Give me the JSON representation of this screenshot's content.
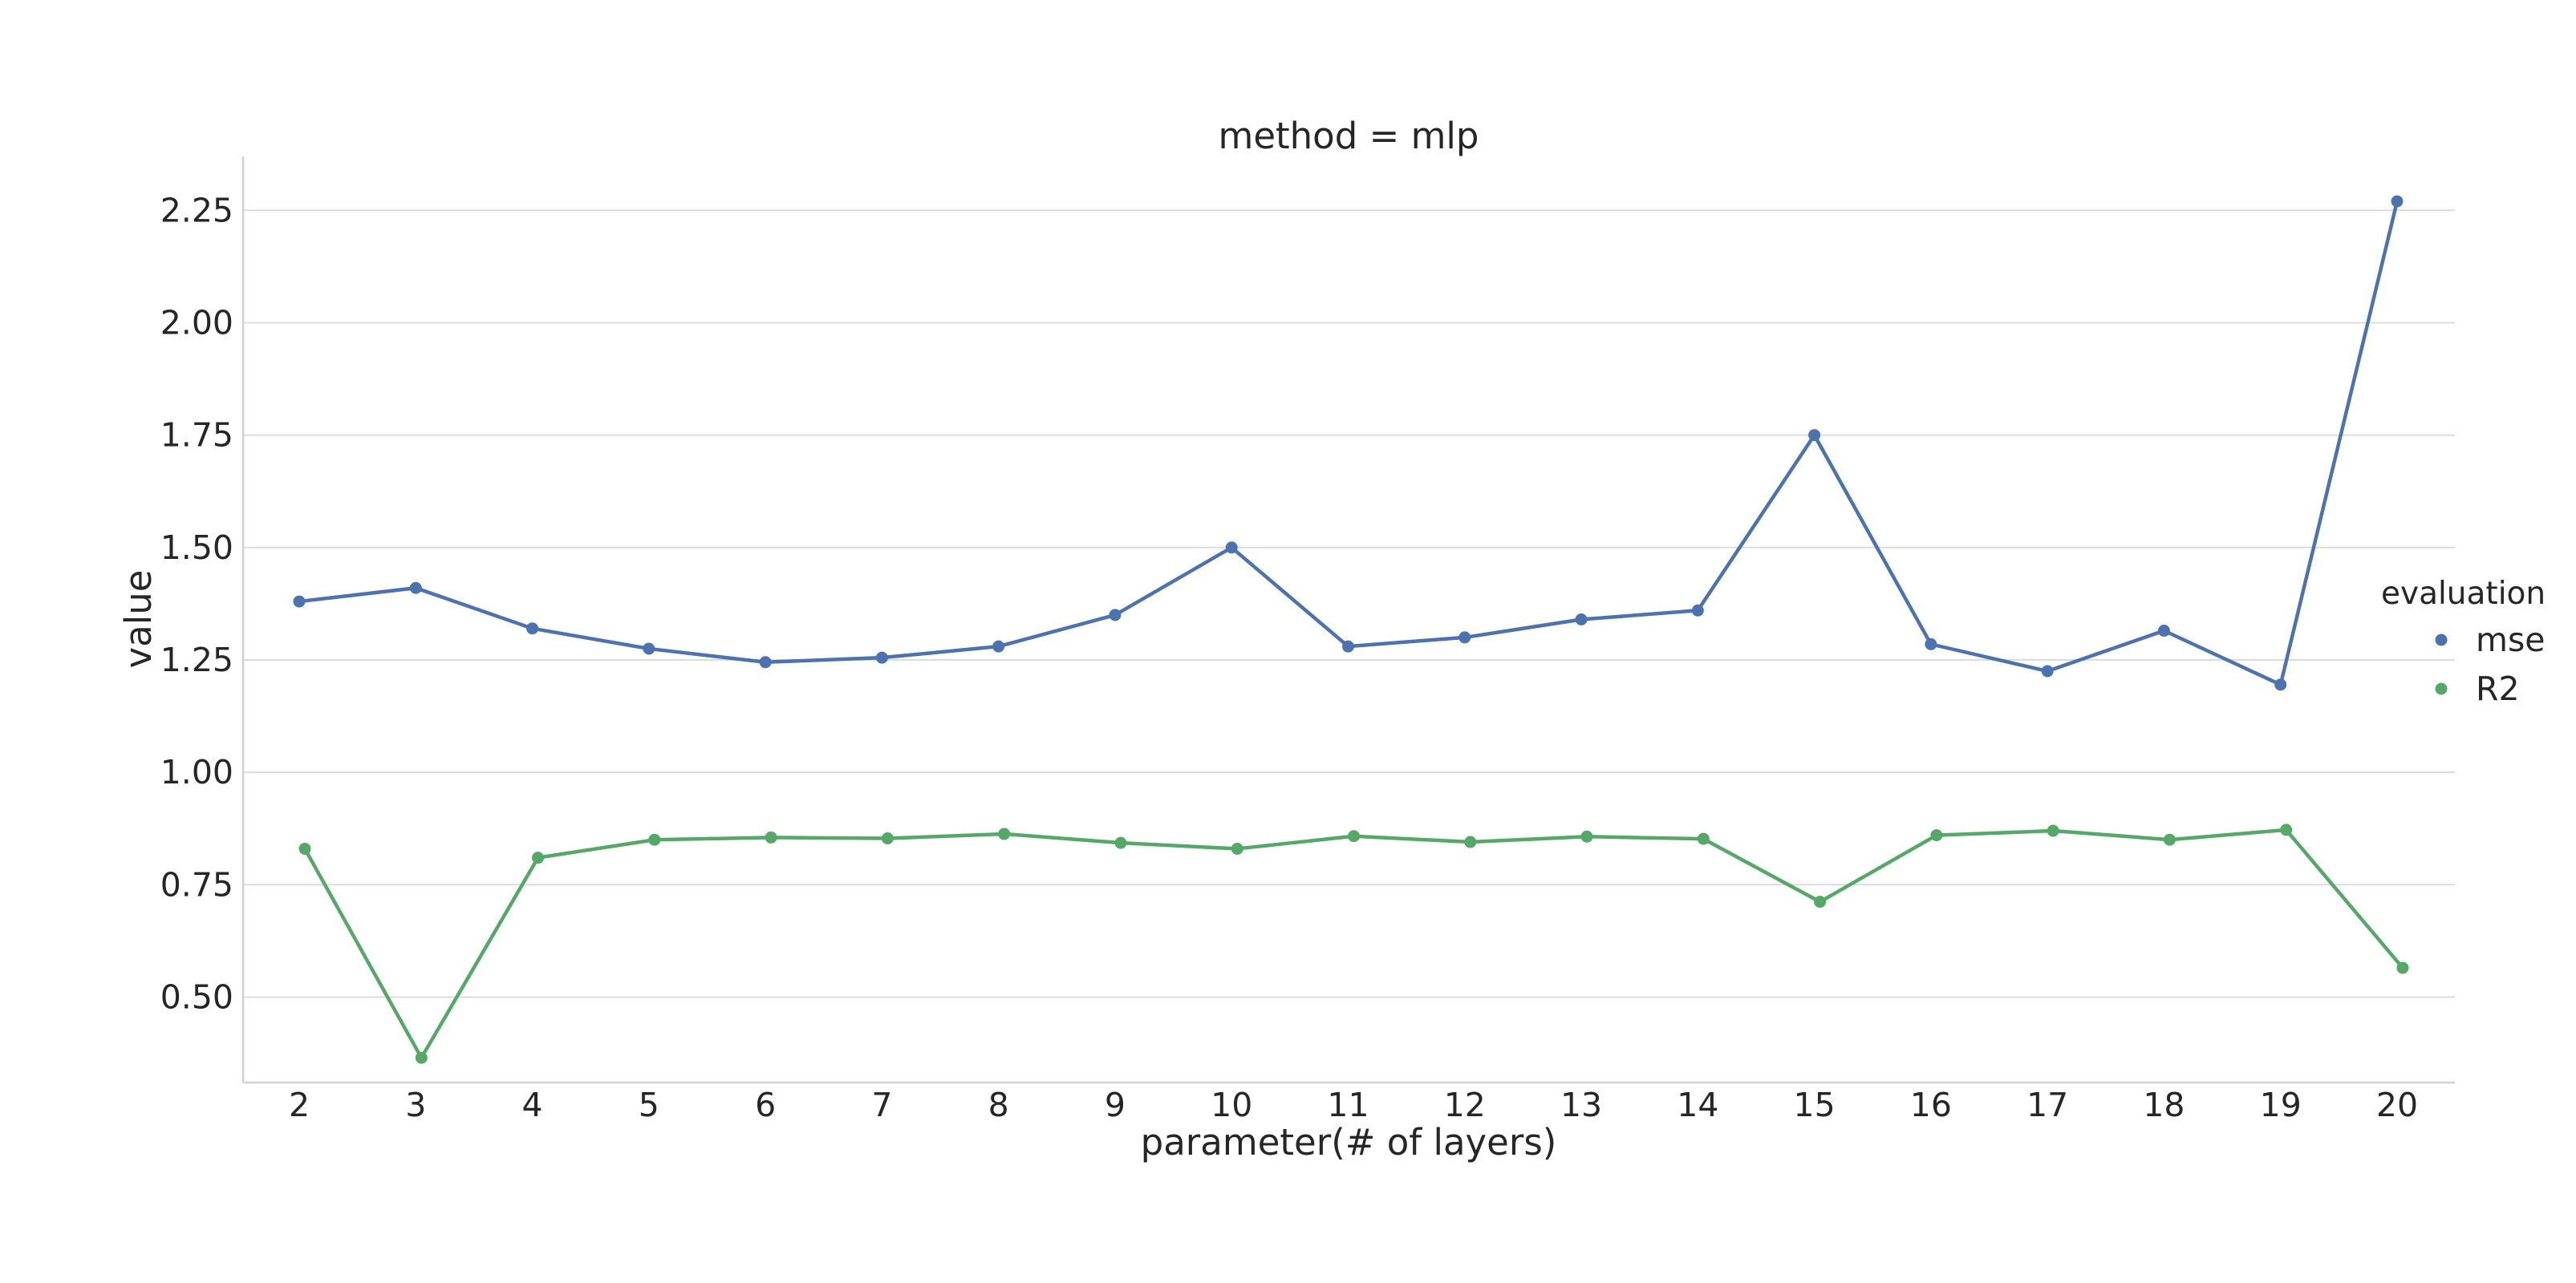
{
  "chart_data": {
    "type": "line",
    "title": "method = mlp",
    "xlabel": "parameter(# of layers)",
    "ylabel": "value",
    "x": [
      2,
      3,
      4,
      5,
      6,
      7,
      8,
      9,
      10,
      11,
      12,
      13,
      14,
      15,
      16,
      17,
      18,
      19,
      20
    ],
    "ylim": [
      0.31,
      2.37
    ],
    "yticks": [
      0.5,
      0.75,
      1.0,
      1.25,
      1.5,
      1.75,
      2.0,
      2.25
    ],
    "ytick_labels": [
      "0.50",
      "0.75",
      "1.00",
      "1.25",
      "1.50",
      "1.75",
      "2.00",
      "2.25"
    ],
    "grid": "horizontal",
    "legend": {
      "title": "evaluation",
      "placement": "right"
    },
    "series": [
      {
        "name": "mse",
        "color": "#4c72b0",
        "values": [
          1.38,
          1.41,
          1.32,
          1.275,
          1.245,
          1.255,
          1.28,
          1.35,
          1.5,
          1.28,
          1.3,
          1.34,
          1.36,
          1.75,
          1.285,
          1.225,
          1.315,
          1.195,
          2.27
        ]
      },
      {
        "name": "R2",
        "color": "#55a868",
        "values": [
          0.83,
          0.365,
          0.81,
          0.85,
          0.855,
          0.853,
          0.863,
          0.843,
          0.83,
          0.858,
          0.845,
          0.857,
          0.852,
          0.712,
          0.86,
          0.87,
          0.85,
          0.872,
          0.565
        ]
      }
    ]
  }
}
